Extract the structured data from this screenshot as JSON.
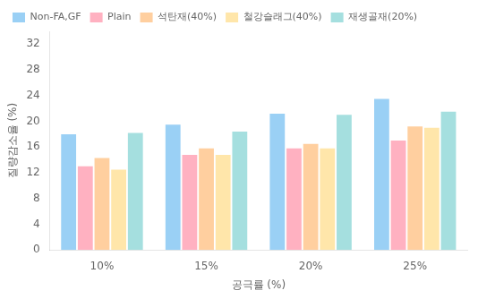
{
  "chart_data": {
    "type": "bar",
    "categories": [
      "10%",
      "15%",
      "20%",
      "25%"
    ],
    "series": [
      {
        "name": "Non-FA,GF",
        "values": [
          18.0,
          19.5,
          21.2,
          23.5
        ]
      },
      {
        "name": "Plain",
        "values": [
          13.0,
          14.8,
          15.8,
          17.0
        ]
      },
      {
        "name": "석탄재(40%)",
        "values": [
          14.3,
          15.8,
          16.5,
          19.2
        ]
      },
      {
        "name": "철강슬래그(40%)",
        "values": [
          12.5,
          14.8,
          15.8,
          19.0
        ]
      },
      {
        "name": "재생골재(20%)",
        "values": [
          18.2,
          18.4,
          21.0,
          21.5
        ]
      }
    ],
    "xlabel": "공극률 (%)",
    "ylabel": "질량감소율 (%)",
    "ylim": [
      0,
      34
    ],
    "yticks": [
      0,
      4,
      8,
      12,
      16,
      20,
      24,
      28,
      32
    ],
    "grid": false,
    "legend": "upper left"
  }
}
